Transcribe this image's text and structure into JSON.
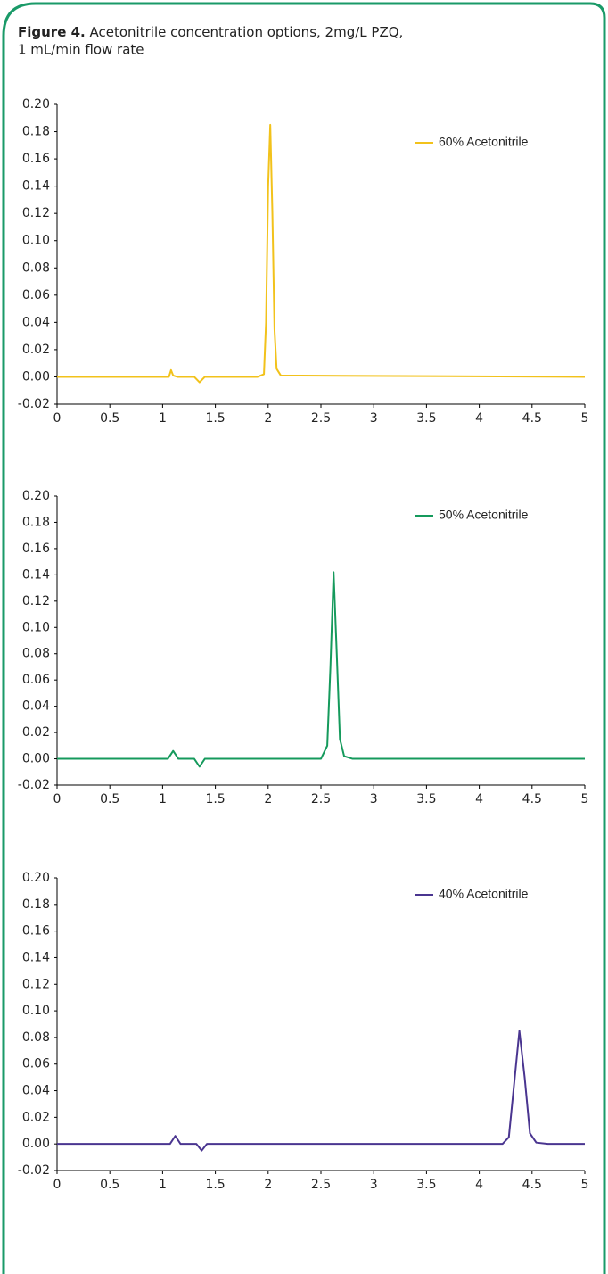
{
  "figure": {
    "label": "Figure 4.",
    "caption": [
      "Acetonitrile concentration options, 2mg/L PZQ,",
      "1 mL/min flow rate"
    ]
  },
  "chart_data": [
    {
      "type": "line",
      "series": [
        {
          "name": "60% Acetonitrile",
          "color": "#f2c21b",
          "x": [
            0,
            1.0,
            1.06,
            1.08,
            1.1,
            1.14,
            1.3,
            1.35,
            1.4,
            1.9,
            1.96,
            1.98,
            2.0,
            2.02,
            2.04,
            2.06,
            2.08,
            2.12,
            5
          ],
          "values": [
            0,
            0,
            0,
            0.005,
            0.001,
            0,
            0,
            -0.004,
            0,
            0,
            0.002,
            0.04,
            0.14,
            0.185,
            0.12,
            0.035,
            0.006,
            0.001,
            0
          ]
        }
      ],
      "xlim": [
        0,
        5
      ],
      "xticks": [
        0,
        0.5,
        1,
        1.5,
        2,
        2.5,
        3,
        3.5,
        4,
        4.5,
        5
      ],
      "ylim": [
        -0.02,
        0.2
      ],
      "yticks": [
        -0.02,
        {
          "value": 0,
          "label": "0.00"
        },
        0.02,
        0.04,
        0.06,
        0.08,
        {
          "value": 0.1,
          "label": "0.10"
        },
        0.12,
        0.14,
        0.16,
        0.18,
        {
          "value": 0.2,
          "label": "0.20"
        }
      ],
      "legend": "upper right",
      "grid": false
    },
    {
      "type": "line",
      "series": [
        {
          "name": "50% Acetonitrile",
          "color": "#159a5c",
          "x": [
            0,
            1.05,
            1.1,
            1.15,
            1.3,
            1.35,
            1.4,
            2.5,
            2.56,
            2.59,
            2.62,
            2.65,
            2.68,
            2.72,
            2.8,
            5
          ],
          "values": [
            0,
            0,
            0.006,
            0,
            0,
            -0.006,
            0,
            0,
            0.01,
            0.07,
            0.142,
            0.08,
            0.015,
            0.002,
            0,
            0
          ]
        }
      ],
      "xlim": [
        0,
        5
      ],
      "xticks": [
        0,
        0.5,
        1,
        1.5,
        2,
        2.5,
        3,
        3.5,
        4,
        4.5,
        5
      ],
      "ylim": [
        -0.02,
        0.2
      ],
      "yticks": [
        -0.02,
        {
          "value": 0,
          "label": "0.00"
        },
        0.02,
        0.04,
        0.06,
        0.08,
        {
          "value": 0.1,
          "label": "0.10"
        },
        0.12,
        0.14,
        0.16,
        0.18,
        {
          "value": 0.2,
          "label": "0.20"
        }
      ],
      "legend": "upper right",
      "grid": false
    },
    {
      "type": "line",
      "series": [
        {
          "name": "40% Acetonitrile",
          "color": "#4a3590",
          "x": [
            0,
            1.07,
            1.12,
            1.17,
            1.32,
            1.37,
            1.42,
            4.22,
            4.28,
            4.33,
            4.38,
            4.43,
            4.48,
            4.54,
            4.65,
            5
          ],
          "values": [
            0,
            0,
            0.006,
            0,
            0,
            -0.005,
            0,
            0,
            0.005,
            0.045,
            0.085,
            0.05,
            0.008,
            0.001,
            0,
            0
          ]
        }
      ],
      "xlim": [
        0,
        5
      ],
      "xticks": [
        0,
        0.5,
        1,
        1.5,
        2,
        2.5,
        3,
        3.5,
        4,
        4.5,
        5
      ],
      "ylim": [
        -0.02,
        0.2
      ],
      "yticks": [
        -0.02,
        {
          "value": 0,
          "label": "0.00"
        },
        0.02,
        0.04,
        0.06,
        0.08,
        {
          "value": 0.1,
          "label": "0.10"
        },
        0.12,
        0.14,
        0.16,
        0.18,
        {
          "value": 0.2,
          "label": "0.20"
        }
      ],
      "legend": "upper right",
      "grid": false
    }
  ]
}
